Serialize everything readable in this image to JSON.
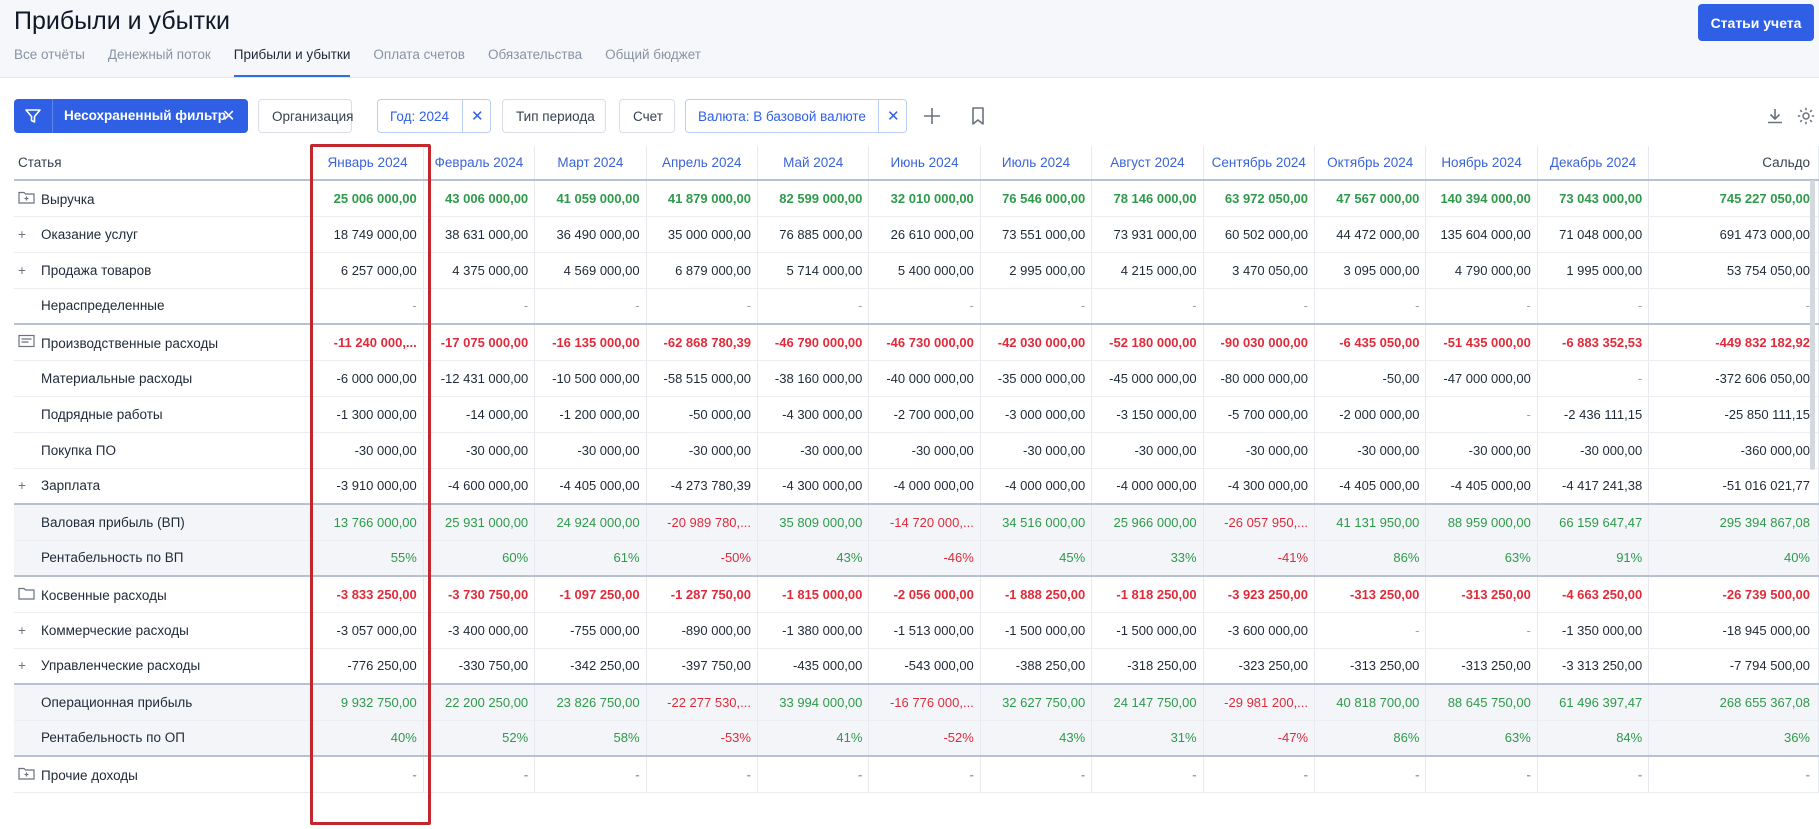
{
  "page": {
    "title": "Прибыли и убытки",
    "primary_button": "Статьи учета"
  },
  "tabs": [
    "Все отчёты",
    "Денежный поток",
    "Прибыли и убытки",
    "Оплата счетов",
    "Обязательства",
    "Общий бюджет"
  ],
  "active_tab": "Прибыли и убытки",
  "filters": {
    "unsaved": "Несохраненный фильтр",
    "organization": "Организация",
    "year": "Год: 2024",
    "period_type": "Тип периода",
    "account": "Счет",
    "currency": "Валюта: В базовой валюте"
  },
  "table": {
    "columns": [
      "Статья",
      "Январь 2024",
      "Февраль 2024",
      "Март 2024",
      "Апрель 2024",
      "Май 2024",
      "Июнь 2024",
      "Июль 2024",
      "Август 2024",
      "Сентябрь 2024",
      "Октябрь 2024",
      "Ноябрь 2024",
      "Декабрь 2024",
      "Сальдо"
    ],
    "rows": [
      {
        "label": "Выручка",
        "prefix": "folder-plus",
        "style": "group",
        "values": [
          "25 006 000,00",
          "43 006 000,00",
          "41 059 000,00",
          "41 879 000,00",
          "82 599 000,00",
          "32 010 000,00",
          "76 546 000,00",
          "78 146 000,00",
          "63 972 050,00",
          "47 567 000,00",
          "140 394 000,00",
          "73 043 000,00",
          "745 227 050,00"
        ]
      },
      {
        "label": "Оказание услуг",
        "prefix": "plus",
        "style": "normal",
        "values": [
          "18 749 000,00",
          "38 631 000,00",
          "36 490 000,00",
          "35 000 000,00",
          "76 885 000,00",
          "26 610 000,00",
          "73 551 000,00",
          "73 931 000,00",
          "60 502 000,00",
          "44 472 000,00",
          "135 604 000,00",
          "71 048 000,00",
          "691 473 000,00"
        ]
      },
      {
        "label": "Продажа товаров",
        "prefix": "plus",
        "style": "normal",
        "values": [
          "6 257 000,00",
          "4 375 000,00",
          "4 569 000,00",
          "6 879 000,00",
          "5 714 000,00",
          "5 400 000,00",
          "2 995 000,00",
          "4 215 000,00",
          "3 470 050,00",
          "3 095 000,00",
          "4 790 000,00",
          "1 995 000,00",
          "53 754 050,00"
        ]
      },
      {
        "label": "Нераспределенные",
        "prefix": "",
        "style": "normal",
        "values": [
          "-",
          "-",
          "-",
          "-",
          "-",
          "-",
          "-",
          "-",
          "-",
          "-",
          "-",
          "-",
          "-"
        ]
      },
      {
        "label": "Производственные расходы",
        "prefix": "doc",
        "style": "group",
        "values": [
          "-11 240 000,...",
          "-17 075 000,00",
          "-16 135 000,00",
          "-62 868 780,39",
          "-46 790 000,00",
          "-46 730 000,00",
          "-42 030 000,00",
          "-52 180 000,00",
          "-90 030 000,00",
          "-6 435 050,00",
          "-51 435 000,00",
          "-6 883 352,53",
          "-449 832 182,92"
        ]
      },
      {
        "label": "Материальные расходы",
        "prefix": "",
        "style": "normal",
        "values": [
          "-6 000 000,00",
          "-12 431 000,00",
          "-10 500 000,00",
          "-58 515 000,00",
          "-38 160 000,00",
          "-40 000 000,00",
          "-35 000 000,00",
          "-45 000 000,00",
          "-80 000 000,00",
          "-50,00",
          "-47 000 000,00",
          "-",
          "-372 606 050,00"
        ]
      },
      {
        "label": "Подрядные работы",
        "prefix": "",
        "style": "normal",
        "values": [
          "-1 300 000,00",
          "-14 000,00",
          "-1 200 000,00",
          "-50 000,00",
          "-4 300 000,00",
          "-2 700 000,00",
          "-3 000 000,00",
          "-3 150 000,00",
          "-5 700 000,00",
          "-2 000 000,00",
          "-",
          "-2 436 111,15",
          "-25 850 111,15"
        ]
      },
      {
        "label": "Покупка ПО",
        "prefix": "",
        "style": "normal",
        "values": [
          "-30 000,00",
          "-30 000,00",
          "-30 000,00",
          "-30 000,00",
          "-30 000,00",
          "-30 000,00",
          "-30 000,00",
          "-30 000,00",
          "-30 000,00",
          "-30 000,00",
          "-30 000,00",
          "-30 000,00",
          "-360 000,00"
        ]
      },
      {
        "label": "Зарплата",
        "prefix": "plus",
        "style": "normal",
        "values": [
          "-3 910 000,00",
          "-4 600 000,00",
          "-4 405 000,00",
          "-4 273 780,39",
          "-4 300 000,00",
          "-4 000 000,00",
          "-4 000 000,00",
          "-4 000 000,00",
          "-4 300 000,00",
          "-4 405 000,00",
          "-4 405 000,00",
          "-4 417 241,38",
          "-51 016 021,77"
        ]
      },
      {
        "label": "Валовая прибыль (ВП)",
        "prefix": "",
        "style": "profit",
        "values": [
          "13 766 000,00",
          "25 931 000,00",
          "24 924 000,00",
          "-20 989 780,...",
          "35 809 000,00",
          "-14 720 000,...",
          "34 516 000,00",
          "25 966 000,00",
          "-26 057 950,...",
          "41 131 950,00",
          "88 959 000,00",
          "66 159 647,47",
          "295 394 867,08"
        ]
      },
      {
        "label": "Рентабельность по ВП",
        "prefix": "",
        "style": "profit-last",
        "values": [
          "55%",
          "60%",
          "61%",
          "-50%",
          "43%",
          "-46%",
          "45%",
          "33%",
          "-41%",
          "86%",
          "63%",
          "91%",
          "40%"
        ]
      },
      {
        "label": "Косвенные расходы",
        "prefix": "folder",
        "style": "group",
        "values": [
          "-3 833 250,00",
          "-3 730 750,00",
          "-1 097 250,00",
          "-1 287 750,00",
          "-1 815 000,00",
          "-2 056 000,00",
          "-1 888 250,00",
          "-1 818 250,00",
          "-3 923 250,00",
          "-313 250,00",
          "-313 250,00",
          "-4 663 250,00",
          "-26 739 500,00"
        ]
      },
      {
        "label": "Коммерческие расходы",
        "prefix": "plus",
        "style": "normal",
        "values": [
          "-3 057 000,00",
          "-3 400 000,00",
          "-755 000,00",
          "-890 000,00",
          "-1 380 000,00",
          "-1 513 000,00",
          "-1 500 000,00",
          "-1 500 000,00",
          "-3 600 000,00",
          "-",
          "-",
          "-1 350 000,00",
          "-18 945 000,00"
        ]
      },
      {
        "label": "Управленческие расходы",
        "prefix": "plus",
        "style": "normal",
        "values": [
          "-776 250,00",
          "-330 750,00",
          "-342 250,00",
          "-397 750,00",
          "-435 000,00",
          "-543 000,00",
          "-388 250,00",
          "-318 250,00",
          "-323 250,00",
          "-313 250,00",
          "-313 250,00",
          "-3 313 250,00",
          "-7 794 500,00"
        ]
      },
      {
        "label": "Операционная прибыль",
        "prefix": "",
        "style": "profit",
        "values": [
          "9 932 750,00",
          "22 200 250,00",
          "23 826 750,00",
          "-22 277 530,...",
          "33 994 000,00",
          "-16 776 000,...",
          "32 627 750,00",
          "24 147 750,00",
          "-29 981 200,...",
          "40 818 700,00",
          "88 645 750,00",
          "61 496 397,47",
          "268 655 367,08"
        ]
      },
      {
        "label": "Рентабельность по ОП",
        "prefix": "",
        "style": "profit-last",
        "values": [
          "40%",
          "52%",
          "58%",
          "-53%",
          "41%",
          "-52%",
          "43%",
          "31%",
          "-47%",
          "86%",
          "63%",
          "84%",
          "36%"
        ]
      },
      {
        "label": "Прочие доходы",
        "prefix": "folder-plus",
        "style": "group",
        "values": [
          "-",
          "-",
          "-",
          "-",
          "-",
          "-",
          "-",
          "-",
          "-",
          "-",
          "-",
          "-",
          "-"
        ]
      }
    ]
  },
  "colors": {
    "accent": "#2f5fe5",
    "positive": "#2e9a4a",
    "negative": "#e02b3a",
    "highlight": "#c1272d"
  }
}
